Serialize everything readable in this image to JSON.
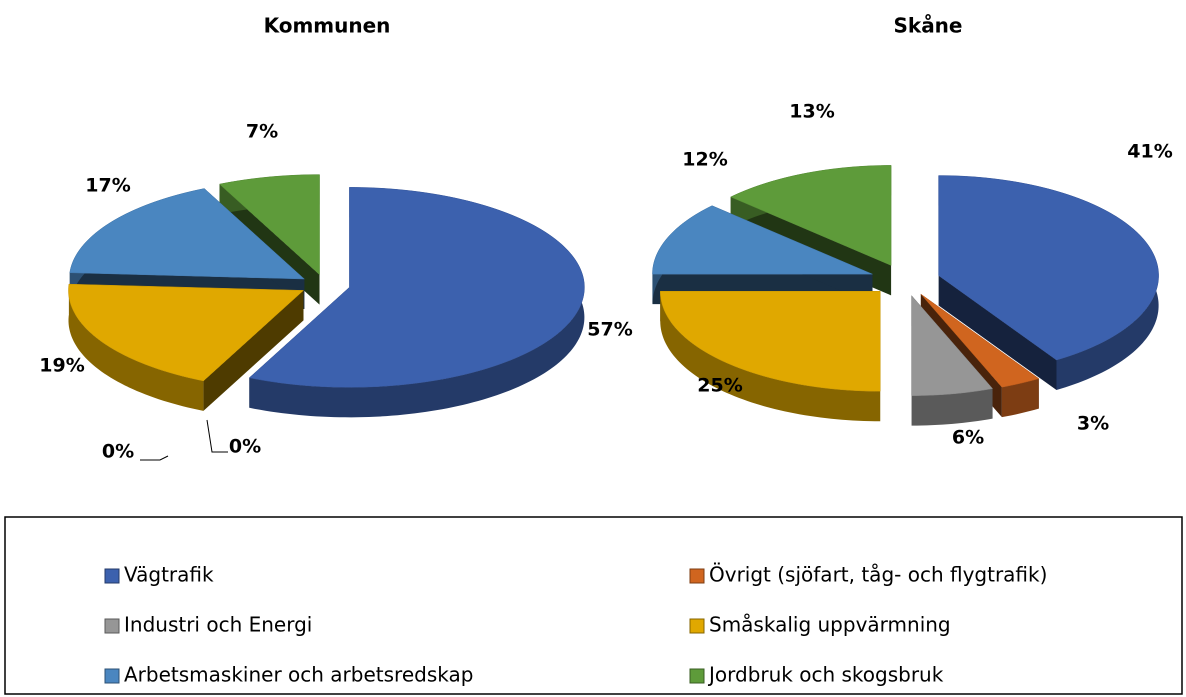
{
  "chart_data": [
    {
      "type": "pie",
      "title": "Kommunen",
      "values": [
        57,
        0,
        0,
        19,
        17,
        7
      ],
      "value_labels": [
        "57%",
        "0%",
        "0%",
        "19%",
        "17%",
        "7%"
      ]
    },
    {
      "type": "pie",
      "title": "Skåne",
      "values": [
        41,
        3,
        6,
        25,
        12,
        13
      ],
      "value_labels": [
        "41%",
        "3%",
        "6%",
        "25%",
        "12%",
        "13%"
      ]
    }
  ],
  "legend": {
    "categories": [
      "Vägtrafik",
      "Övrigt (sjöfart, tåg- och flygtrafik)",
      "Industri och Energi",
      "Småskalig uppvärmning",
      "Arbetsmaskiner och arbetsredskap",
      "Jordbruk och skogsbruk"
    ],
    "colors": [
      "#3c61ae",
      "#d0651f",
      "#969696",
      "#e0a800",
      "#4a86c0",
      "#5e9b3a"
    ]
  }
}
